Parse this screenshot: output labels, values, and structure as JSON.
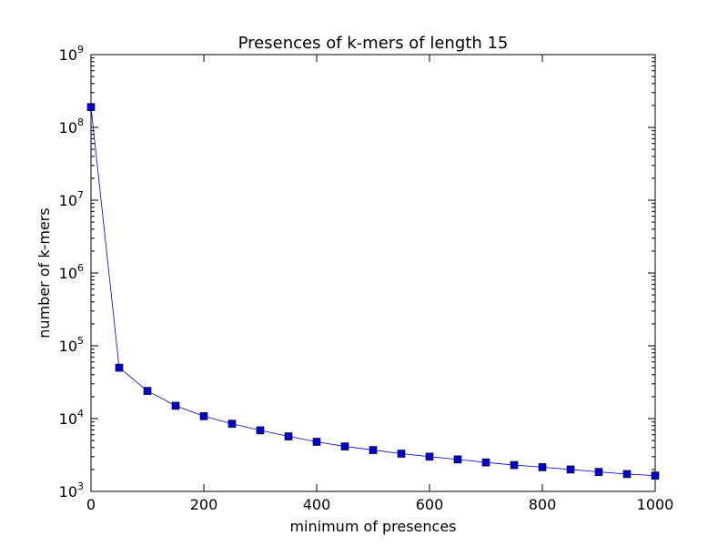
{
  "chart_data": {
    "type": "line",
    "title": "Presences of k-mers of length 15",
    "xlabel": "minimum of presences",
    "ylabel": "number of k-mers",
    "xlim": [
      0,
      1000
    ],
    "ylim": [
      1000,
      1000000000
    ],
    "yscale": "log",
    "grid": false,
    "x_ticks": [
      0,
      200,
      400,
      600,
      800,
      1000
    ],
    "y_ticks": [
      {
        "value": 1000,
        "base": "10",
        "exp": "3"
      },
      {
        "value": 10000,
        "base": "10",
        "exp": "4"
      },
      {
        "value": 100000,
        "base": "10",
        "exp": "5"
      },
      {
        "value": 1000000,
        "base": "10",
        "exp": "6"
      },
      {
        "value": 10000000,
        "base": "10",
        "exp": "7"
      },
      {
        "value": 100000000,
        "base": "10",
        "exp": "8"
      },
      {
        "value": 1000000000,
        "base": "10",
        "exp": "9"
      }
    ],
    "series": [
      {
        "color": "#0000cc",
        "marker": "square",
        "x": [
          0,
          50,
          100,
          150,
          200,
          250,
          300,
          350,
          400,
          450,
          500,
          550,
          600,
          650,
          700,
          750,
          800,
          850,
          900,
          950,
          1000
        ],
        "y": [
          190000000,
          50000,
          24000,
          15000,
          10800,
          8500,
          6900,
          5700,
          4800,
          4150,
          3700,
          3300,
          3000,
          2750,
          2500,
          2300,
          2150,
          2000,
          1850,
          1730,
          1650
        ]
      }
    ]
  }
}
